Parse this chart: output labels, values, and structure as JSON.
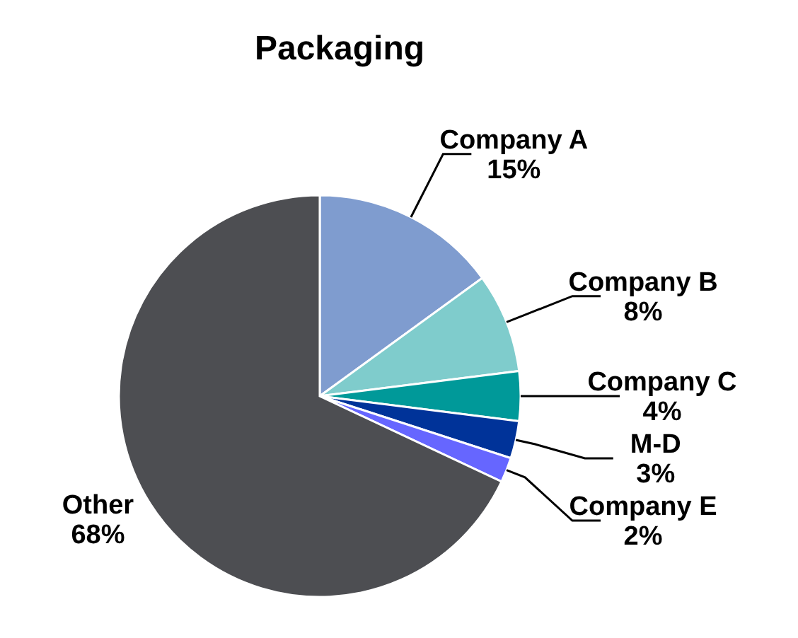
{
  "chart_data": {
    "type": "pie",
    "title": "Packaging",
    "categories": [
      "Company A",
      "Company B",
      "Company C",
      "M-D",
      "Company E",
      "Other"
    ],
    "values": [
      15,
      8,
      4,
      3,
      2,
      68
    ],
    "colors": [
      "#7f9ccf",
      "#7fcccc",
      "#009999",
      "#003399",
      "#6666ff",
      "#4d4e52"
    ],
    "value_labels": [
      "15%",
      "8%",
      "4%",
      "3%",
      "2%",
      "68%"
    ]
  }
}
